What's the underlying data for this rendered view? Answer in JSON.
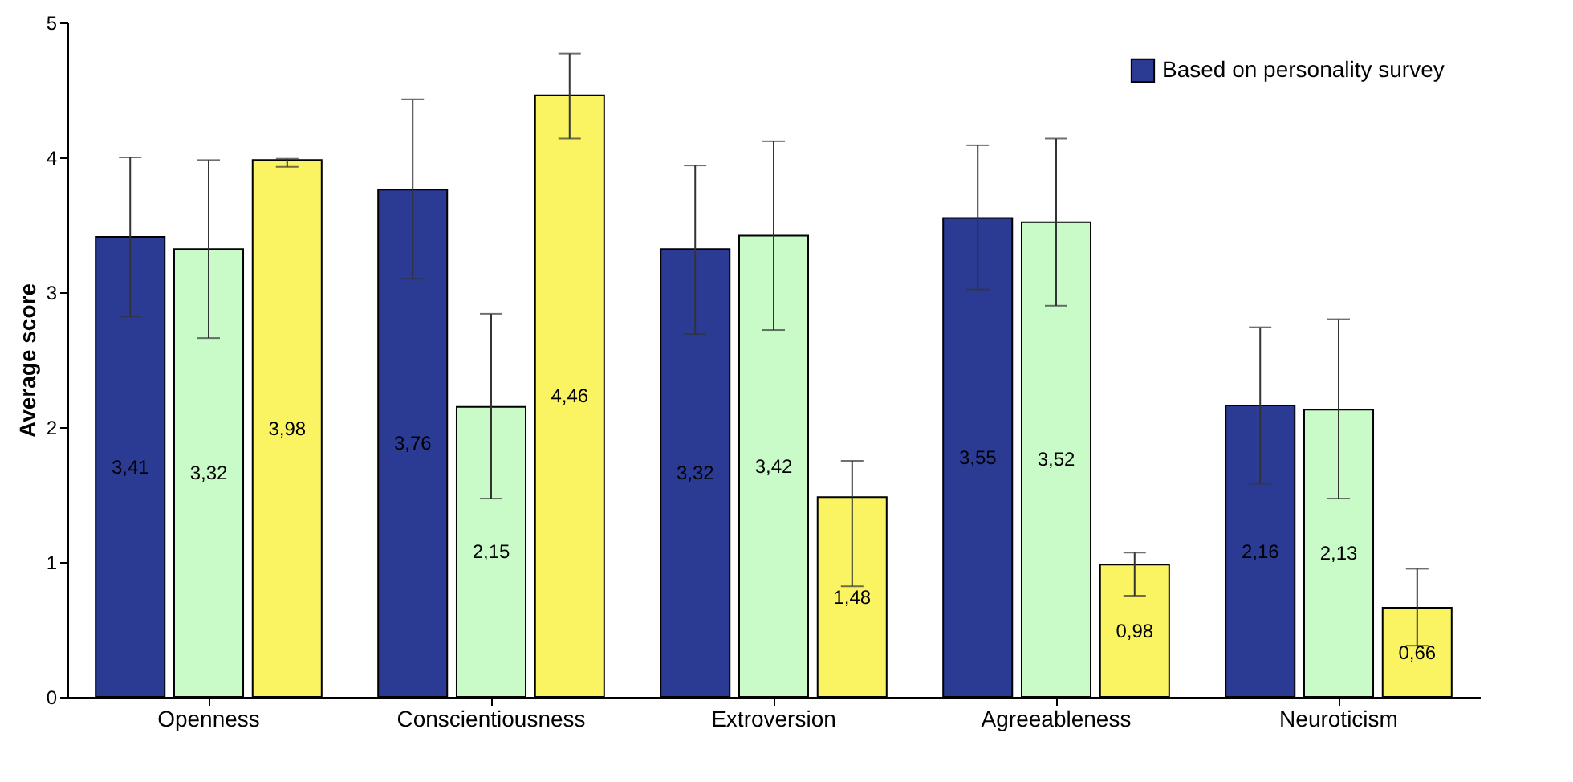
{
  "chart_data": {
    "type": "bar",
    "ylabel": "Average score",
    "categories": [
      "Openness",
      "Conscientiousness",
      "Extroversion",
      "Agreeableness",
      "Neuroticism"
    ],
    "series": [
      {
        "name": "Based on personality survey",
        "color": "#2b3b94",
        "values": [
          3.41,
          3.76,
          3.32,
          3.55,
          2.16
        ],
        "errors": [
          [
            2.82,
            4.0
          ],
          [
            3.1,
            4.43
          ],
          [
            2.69,
            3.94
          ],
          [
            3.02,
            4.09
          ],
          [
            1.58,
            2.74
          ]
        ],
        "value_labels": [
          "3,41",
          "3,76",
          "3,32",
          "3,55",
          "2,16"
        ]
      },
      {
        "color": "#c9fbc9",
        "values": [
          3.32,
          2.15,
          3.42,
          3.52,
          2.13
        ],
        "errors": [
          [
            2.66,
            3.98
          ],
          [
            1.47,
            2.84
          ],
          [
            2.72,
            4.12
          ],
          [
            2.9,
            4.14
          ],
          [
            1.47,
            2.8
          ]
        ],
        "value_labels": [
          "3,32",
          "2,15",
          "3,42",
          "3,52",
          "2,13"
        ]
      },
      {
        "color": "#fbf462",
        "values": [
          3.98,
          4.46,
          1.48,
          0.98,
          0.66
        ],
        "errors": [
          [
            3.93,
            3.99
          ],
          [
            4.14,
            4.77
          ],
          [
            0.82,
            1.75
          ],
          [
            0.75,
            1.07
          ],
          [
            0.38,
            0.95
          ]
        ],
        "value_labels": [
          "3,98",
          "4,46",
          "1,48",
          "0,98",
          "0,66"
        ]
      }
    ],
    "ylim": [
      0,
      5
    ],
    "yticks": [
      0,
      1,
      2,
      3,
      4,
      5
    ],
    "legend": "top right"
  }
}
